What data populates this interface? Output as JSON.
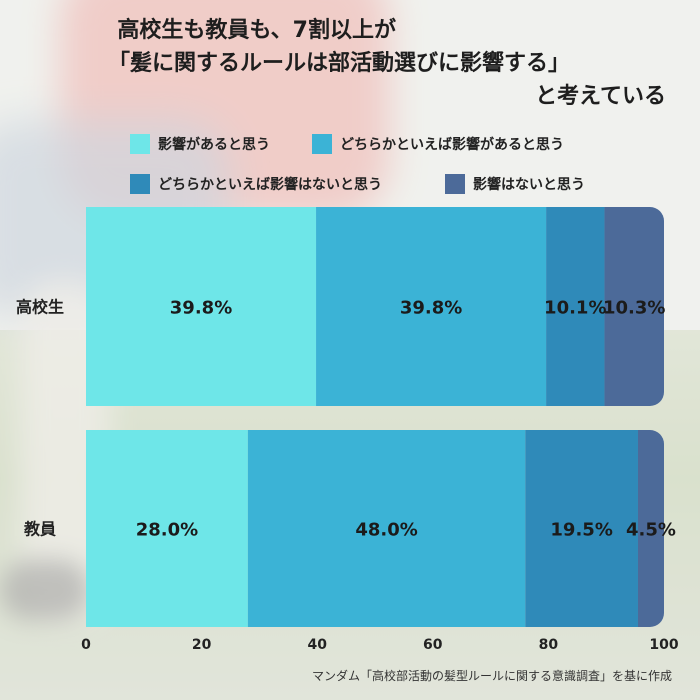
{
  "title": {
    "line1": "高校生も教員も、7割以上が",
    "line2": "「髪に関するルールは部活動選びに影響する」",
    "line3": "と考えている"
  },
  "source": "マンダム「高校部活動の髪型ルールに関する意識調査」を基に作成",
  "chart_data": {
    "type": "bar",
    "orientation": "horizontal",
    "stacked": true,
    "categories": [
      "高校生",
      "教員"
    ],
    "series": [
      {
        "name": "影響があると思う",
        "color": "#6ee6e8",
        "values": [
          39.8,
          28.0
        ]
      },
      {
        "name": "どちらかといえば影響があると思う",
        "color": "#3bb3d6",
        "values": [
          39.8,
          48.0
        ]
      },
      {
        "name": "どちらかといえば影響はないと思う",
        "color": "#2f8ab9",
        "values": [
          10.1,
          19.5
        ]
      },
      {
        "name": "影響はないと思う",
        "color": "#4c6a99",
        "values": [
          10.3,
          4.5
        ]
      }
    ],
    "data_labels": [
      [
        "39.8%",
        "39.8%",
        "10.1%",
        "10.3%"
      ],
      [
        "28.0%",
        "48.0%",
        "19.5%",
        "4.5%"
      ]
    ],
    "xlim": [
      0,
      100
    ],
    "xticks": [
      "0",
      "20",
      "40",
      "60",
      "80",
      "100"
    ],
    "legend_position": "top",
    "grid": false
  }
}
